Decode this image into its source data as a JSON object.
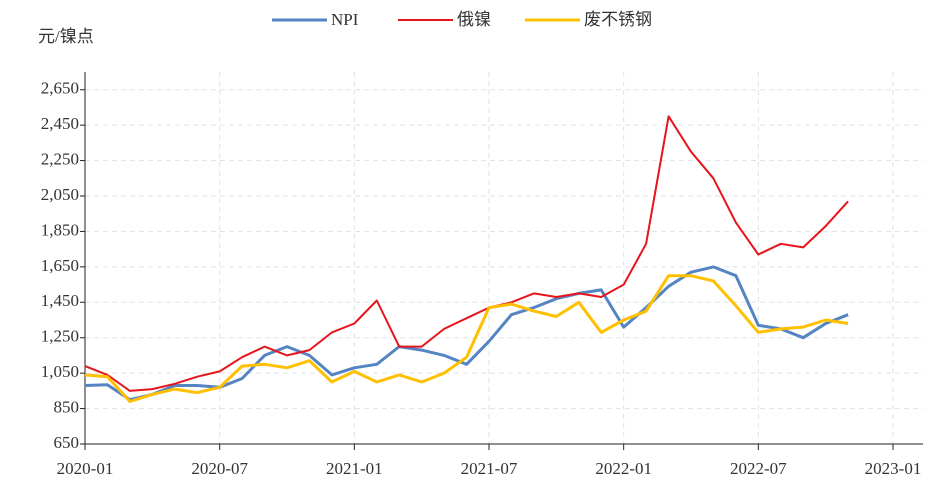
{
  "chart_data": {
    "type": "line",
    "y_label": "元/镍点",
    "x": [
      "2020-01",
      "2020-02",
      "2020-03",
      "2020-04",
      "2020-05",
      "2020-06",
      "2020-07",
      "2020-08",
      "2020-09",
      "2020-10",
      "2020-11",
      "2020-12",
      "2021-01",
      "2021-02",
      "2021-03",
      "2021-04",
      "2021-05",
      "2021-06",
      "2021-07",
      "2021-08",
      "2021-09",
      "2021-10",
      "2021-11",
      "2021-12",
      "2022-01",
      "2022-02",
      "2022-03",
      "2022-04",
      "2022-05",
      "2022-06",
      "2022-07",
      "2022-08",
      "2022-09",
      "2022-10",
      "2022-11"
    ],
    "series": [
      {
        "name": "NPI",
        "color": "#5584c2",
        "width": 3,
        "values": [
          980,
          985,
          900,
          930,
          980,
          980,
          970,
          1020,
          1150,
          1200,
          1150,
          1040,
          1080,
          1100,
          1200,
          1180,
          1150,
          1100,
          1230,
          1380,
          1420,
          1470,
          1500,
          1520,
          1310,
          1420,
          1540,
          1620,
          1650,
          1600,
          1320,
          1300,
          1250,
          1330,
          1380
        ]
      },
      {
        "name": "俄镍",
        "color": "#e8141b",
        "width": 2,
        "values": [
          1090,
          1040,
          950,
          960,
          990,
          1030,
          1060,
          1140,
          1200,
          1150,
          1180,
          1280,
          1330,
          1460,
          1200,
          1200,
          1300,
          1360,
          1420,
          1450,
          1500,
          1480,
          1500,
          1480,
          1550,
          1780,
          2500,
          2300,
          2150,
          1900,
          1720,
          1780,
          1760,
          1880,
          2020
        ]
      },
      {
        "name": "废不锈钢",
        "color": "#ffc000",
        "width": 3,
        "values": [
          1040,
          1030,
          890,
          930,
          960,
          940,
          970,
          1090,
          1100,
          1080,
          1120,
          1000,
          1060,
          1000,
          1040,
          1000,
          1050,
          1140,
          1420,
          1440,
          1400,
          1370,
          1450,
          1280,
          1350,
          1400,
          1600,
          1600,
          1570,
          1430,
          1280,
          1300,
          1310,
          1350,
          1330
        ]
      }
    ],
    "xlim": [
      "2020-01",
      "2023-01"
    ],
    "xticks": [
      "2020-01",
      "2020-07",
      "2021-01",
      "2021-07",
      "2022-01",
      "2022-07",
      "2023-01"
    ],
    "ylim": [
      650,
      2750
    ],
    "yticks": [
      650,
      850,
      {
        "value": 1050,
        "label": "1,050"
      },
      {
        "value": 1250,
        "label": "1,250"
      },
      {
        "value": 1450,
        "label": "1,450"
      },
      {
        "value": 1650,
        "label": "1,650"
      },
      {
        "value": 1850,
        "label": "1,850"
      },
      {
        "value": 2050,
        "label": "2,050"
      },
      {
        "value": 2250,
        "label": "2,250"
      },
      {
        "value": 2450,
        "label": "2,450"
      },
      {
        "value": 2650,
        "label": "2,650"
      }
    ],
    "grid": true,
    "legend": "top"
  }
}
